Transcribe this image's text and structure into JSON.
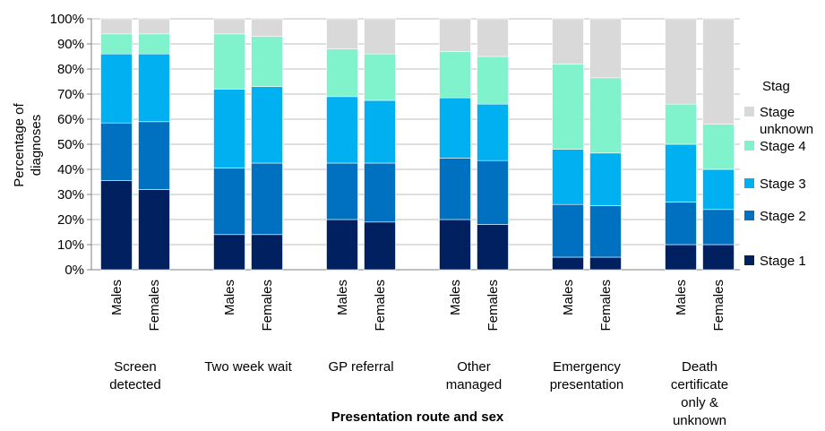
{
  "chart_data": {
    "type": "bar",
    "stacked": true,
    "percent_scale": true,
    "xlabel": "Presentation route and sex",
    "ylabel_lines": [
      "Percentage of",
      "diagnoses"
    ],
    "ylim": [
      0,
      100
    ],
    "yticks": [
      "0%",
      "10%",
      "20%",
      "30%",
      "40%",
      "50%",
      "60%",
      "70%",
      "80%",
      "90%",
      "100%"
    ],
    "groups": [
      {
        "label_lines": [
          "Screen",
          "detected"
        ]
      },
      {
        "label_lines": [
          "Two week wait"
        ]
      },
      {
        "label_lines": [
          "GP referral"
        ]
      },
      {
        "label_lines": [
          "Other",
          "managed"
        ]
      },
      {
        "label_lines": [
          "Emergency",
          "presentation"
        ]
      },
      {
        "label_lines": [
          "Death",
          "certificate",
          "only &",
          "unknown"
        ]
      }
    ],
    "categories": [
      "Males",
      "Females",
      "Males",
      "Females",
      "Males",
      "Females",
      "Males",
      "Females",
      "Males",
      "Females",
      "Males",
      "Females"
    ],
    "series": [
      {
        "name": "Stage 1",
        "color": "#002060",
        "values": [
          35.5,
          32,
          14,
          14,
          20,
          19,
          20,
          18,
          5,
          5,
          10,
          10
        ]
      },
      {
        "name": "Stage 2",
        "color": "#0070C0",
        "values": [
          23,
          27,
          26.5,
          28.5,
          22.5,
          23.5,
          24.5,
          25.5,
          21,
          20.5,
          17,
          14
        ]
      },
      {
        "name": "Stage 3",
        "color": "#00B0F0",
        "values": [
          27.5,
          27,
          31.5,
          30.5,
          26.5,
          25,
          24,
          22.5,
          22,
          21,
          23,
          16
        ]
      },
      {
        "name": "Stage 4",
        "color": "#80F2CC",
        "values": [
          8,
          8,
          22,
          20,
          19,
          18.5,
          18.5,
          19,
          34,
          30,
          16,
          18
        ]
      },
      {
        "name": "Stage unknown",
        "color": "#D9D9D9",
        "values": [
          6,
          6,
          6,
          7,
          12,
          14,
          13,
          15,
          18,
          23.5,
          34,
          42
        ]
      }
    ],
    "legend": {
      "title": "Stag",
      "placement": "right",
      "entries": [
        {
          "lines": [
            "Stage",
            "unknown"
          ],
          "color": "#D9D9D9"
        },
        {
          "lines": [
            "Stage 4"
          ],
          "color": "#80F2CC"
        },
        {
          "lines": [
            "Stage 3"
          ],
          "color": "#00B0F0"
        },
        {
          "lines": [
            "Stage 2"
          ],
          "color": "#0070C0"
        },
        {
          "lines": [
            "Stage 1"
          ],
          "color": "#002060"
        }
      ]
    },
    "grid": true
  }
}
